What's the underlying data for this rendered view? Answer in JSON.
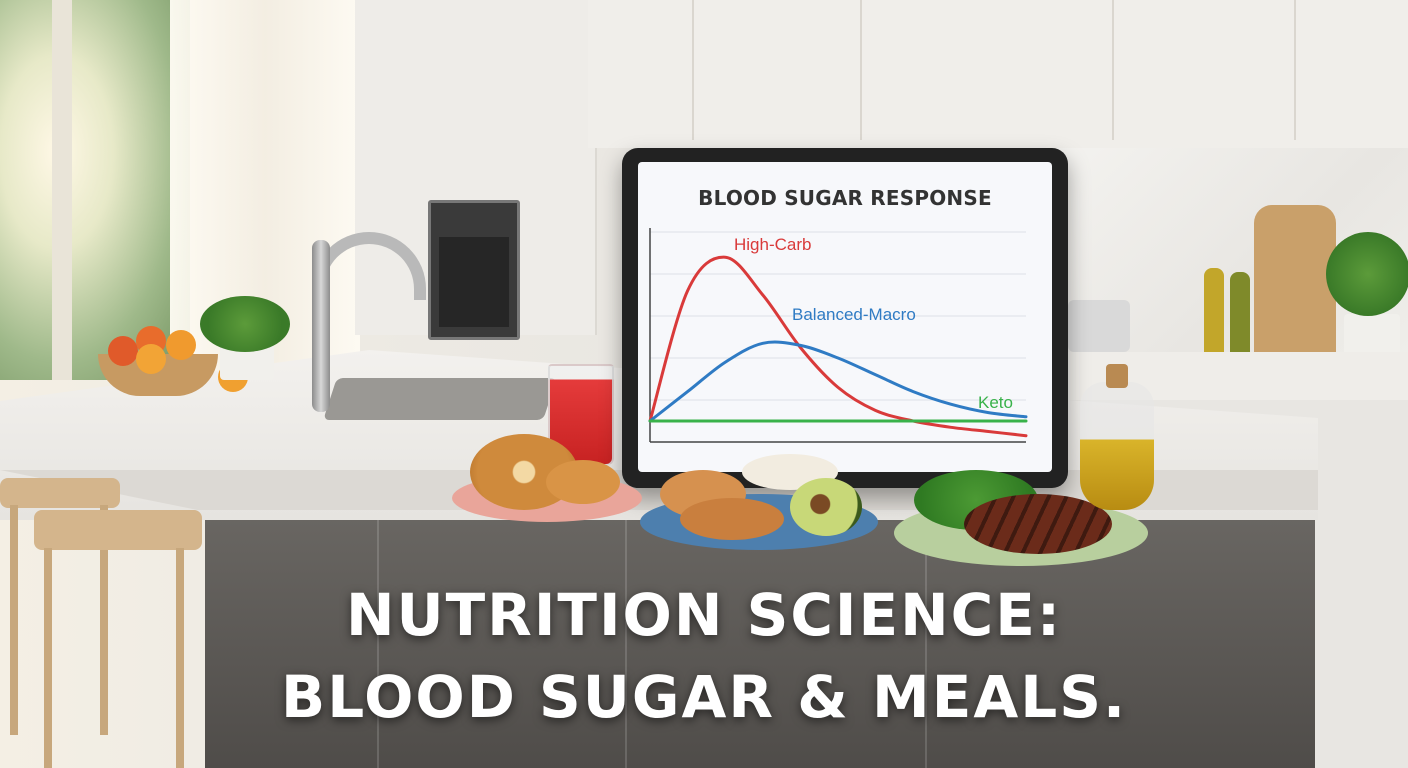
{
  "tablet": {
    "chart_title": "BLOOD SUGAR RESPONSE"
  },
  "chart_data": {
    "type": "line",
    "title": "BLOOD SUGAR RESPONSE",
    "xlabel": "",
    "ylabel": "",
    "grid": true,
    "legend": "inline labels",
    "x": [
      0,
      1,
      2,
      3,
      4,
      5,
      6,
      7,
      8,
      9,
      10
    ],
    "series": [
      {
        "name": "High-Carb",
        "color": "#d93a3a",
        "values": [
          10,
          72,
          88,
          70,
          45,
          26,
          15,
          10,
          7,
          5,
          3
        ]
      },
      {
        "name": "Balanced-Macro",
        "color": "#2f7bc4",
        "values": [
          10,
          24,
          38,
          47,
          46,
          40,
          32,
          24,
          18,
          14,
          12
        ]
      },
      {
        "name": "Keto",
        "color": "#39b24a",
        "values": [
          10,
          10,
          10,
          10,
          10,
          10,
          10,
          10,
          10,
          10,
          10
        ]
      }
    ],
    "ylim": [
      0,
      100
    ]
  },
  "headline": {
    "line1": "NUTRITION SCIENCE:",
    "line2": "BLOOD SUGAR & MEALS."
  }
}
